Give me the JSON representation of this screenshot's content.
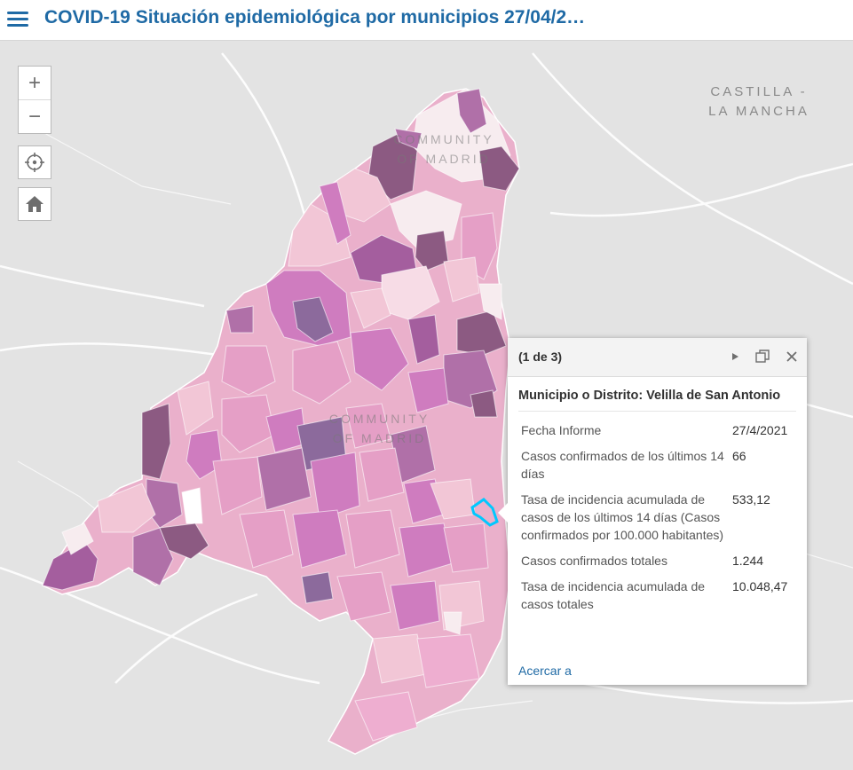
{
  "header": {
    "title": "COVID-19 Situación epidemiológica por municipios 27/04/2…"
  },
  "map": {
    "labels": {
      "region_east": [
        "CASTILLA -",
        "LA MANCHA"
      ],
      "region_top": [
        "COMMUNITY",
        "OF MADRID"
      ],
      "region_center": [
        "COMMUNITY",
        "OF MADRID"
      ]
    },
    "colors": {
      "background": "#e3e3e3",
      "lightest": "#f7ecef",
      "light": "#f2c6d6",
      "medium": "#e59fc6",
      "strong": "#cf7cbf",
      "darker": "#a45e9e",
      "darkest": "#8c5a82",
      "selection": "#00c8ff"
    },
    "selected_municipality": "Velilla de San Antonio"
  },
  "controls": {
    "zoom_in_symbol": "+",
    "zoom_out_symbol": "−",
    "locate_icon": "locate-icon",
    "home_icon": "home-icon"
  },
  "popup": {
    "counter": "(1 de 3)",
    "title": "Municipio o Distrito: Velilla de San Antonio",
    "fields": [
      {
        "label": "Fecha Informe",
        "value": "27/4/2021"
      },
      {
        "label": "Casos confirmados de los últimos 14 días",
        "value": "66"
      },
      {
        "label": "Tasa de incidencia acumulada de casos de los últimos 14 días (Casos confirmados por 100.000 habitantes)",
        "value": "533,12"
      },
      {
        "label": "Casos confirmados totales",
        "value": "1.244"
      },
      {
        "label": "Tasa de incidencia acumulada de casos totales",
        "value": "10.048,47"
      }
    ],
    "zoom_link": "Acercar a",
    "icons": [
      "next-icon",
      "dock-icon",
      "close-icon"
    ]
  }
}
